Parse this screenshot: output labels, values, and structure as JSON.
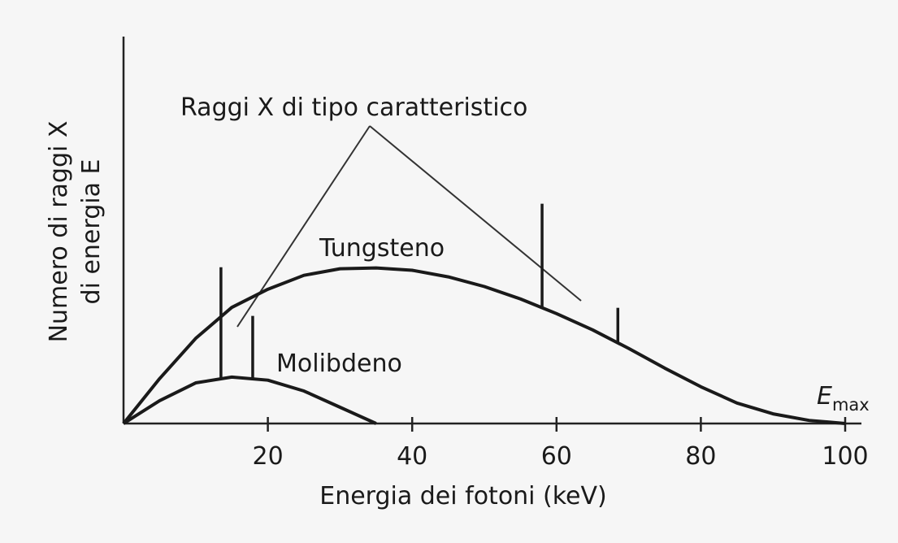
{
  "chart_data": {
    "type": "line",
    "xlabel": "Energia dei fotoni (keV)",
    "ylabel": [
      "Numero di raggi X",
      "di energia E"
    ],
    "annotation": "Raggi X di tipo caratteristico",
    "emax_label": {
      "main": "E",
      "sub": "max"
    },
    "xlim": [
      0,
      100
    ],
    "ylim": [
      0,
      100
    ],
    "xticks": [
      20,
      40,
      60,
      80,
      100
    ],
    "series": [
      {
        "name": "Tungsteno",
        "color": "#1a1a1a",
        "x": [
          0,
          5,
          10,
          15,
          20,
          25,
          30,
          35,
          40,
          45,
          50,
          55,
          60,
          65,
          70,
          75,
          80,
          85,
          90,
          95,
          100
        ],
        "values": [
          0,
          11.6,
          22,
          30,
          34.7,
          38.3,
          40,
          40.2,
          39.6,
          37.9,
          35.4,
          32.2,
          28.4,
          24.2,
          19.4,
          14.3,
          9.5,
          5.3,
          2.5,
          0.8,
          0
        ],
        "lines": {
          "x": [
            58,
            68.5
          ],
          "values": [
            56.8,
            29.9
          ]
        }
      },
      {
        "name": "Molibdeno",
        "color": "#1a1a1a",
        "x": [
          0,
          5,
          10,
          15,
          20,
          25,
          30,
          35
        ],
        "values": [
          0,
          5.9,
          10.5,
          12,
          11.2,
          8.4,
          4.2,
          0
        ],
        "lines": {
          "x": [
            13.5,
            17.9
          ],
          "values": [
            40.4,
            27.8
          ]
        }
      }
    ]
  }
}
